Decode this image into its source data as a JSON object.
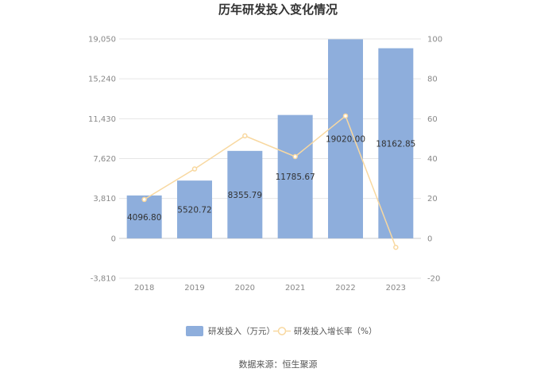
{
  "chart_data": {
    "type": "bar",
    "title": "历年研发投入变化情况",
    "categories": [
      "2018",
      "2019",
      "2020",
      "2021",
      "2022",
      "2023"
    ],
    "series": [
      {
        "name": "研发投入（万元）",
        "type": "bar",
        "axis": "left",
        "color": "#8eaedc",
        "values": [
          4096.8,
          5520.72,
          8355.79,
          11785.67,
          19020.0,
          18162.85
        ],
        "labels": [
          "4096.80",
          "5520.72",
          "8355.79",
          "11785.67",
          "19020.00",
          "18162.85"
        ]
      },
      {
        "name": "研发投入增长率（%）",
        "type": "line",
        "axis": "right",
        "color": "#f8d8a0",
        "values": [
          19.5,
          34.8,
          51.4,
          41.0,
          61.4,
          -4.5
        ]
      }
    ],
    "y_left": {
      "ticks": [
        "19,050",
        "15,240",
        "11,430",
        "7,620",
        "3,810",
        "0",
        "-3,810"
      ],
      "range": [
        -3810,
        19050
      ]
    },
    "y_right": {
      "ticks": [
        "100",
        "80",
        "60",
        "40",
        "20",
        "0",
        "-20"
      ],
      "range": [
        -20,
        100
      ]
    },
    "grid": true,
    "legend_position": "bottom-center"
  },
  "source_text": "数据来源：恒生聚源"
}
